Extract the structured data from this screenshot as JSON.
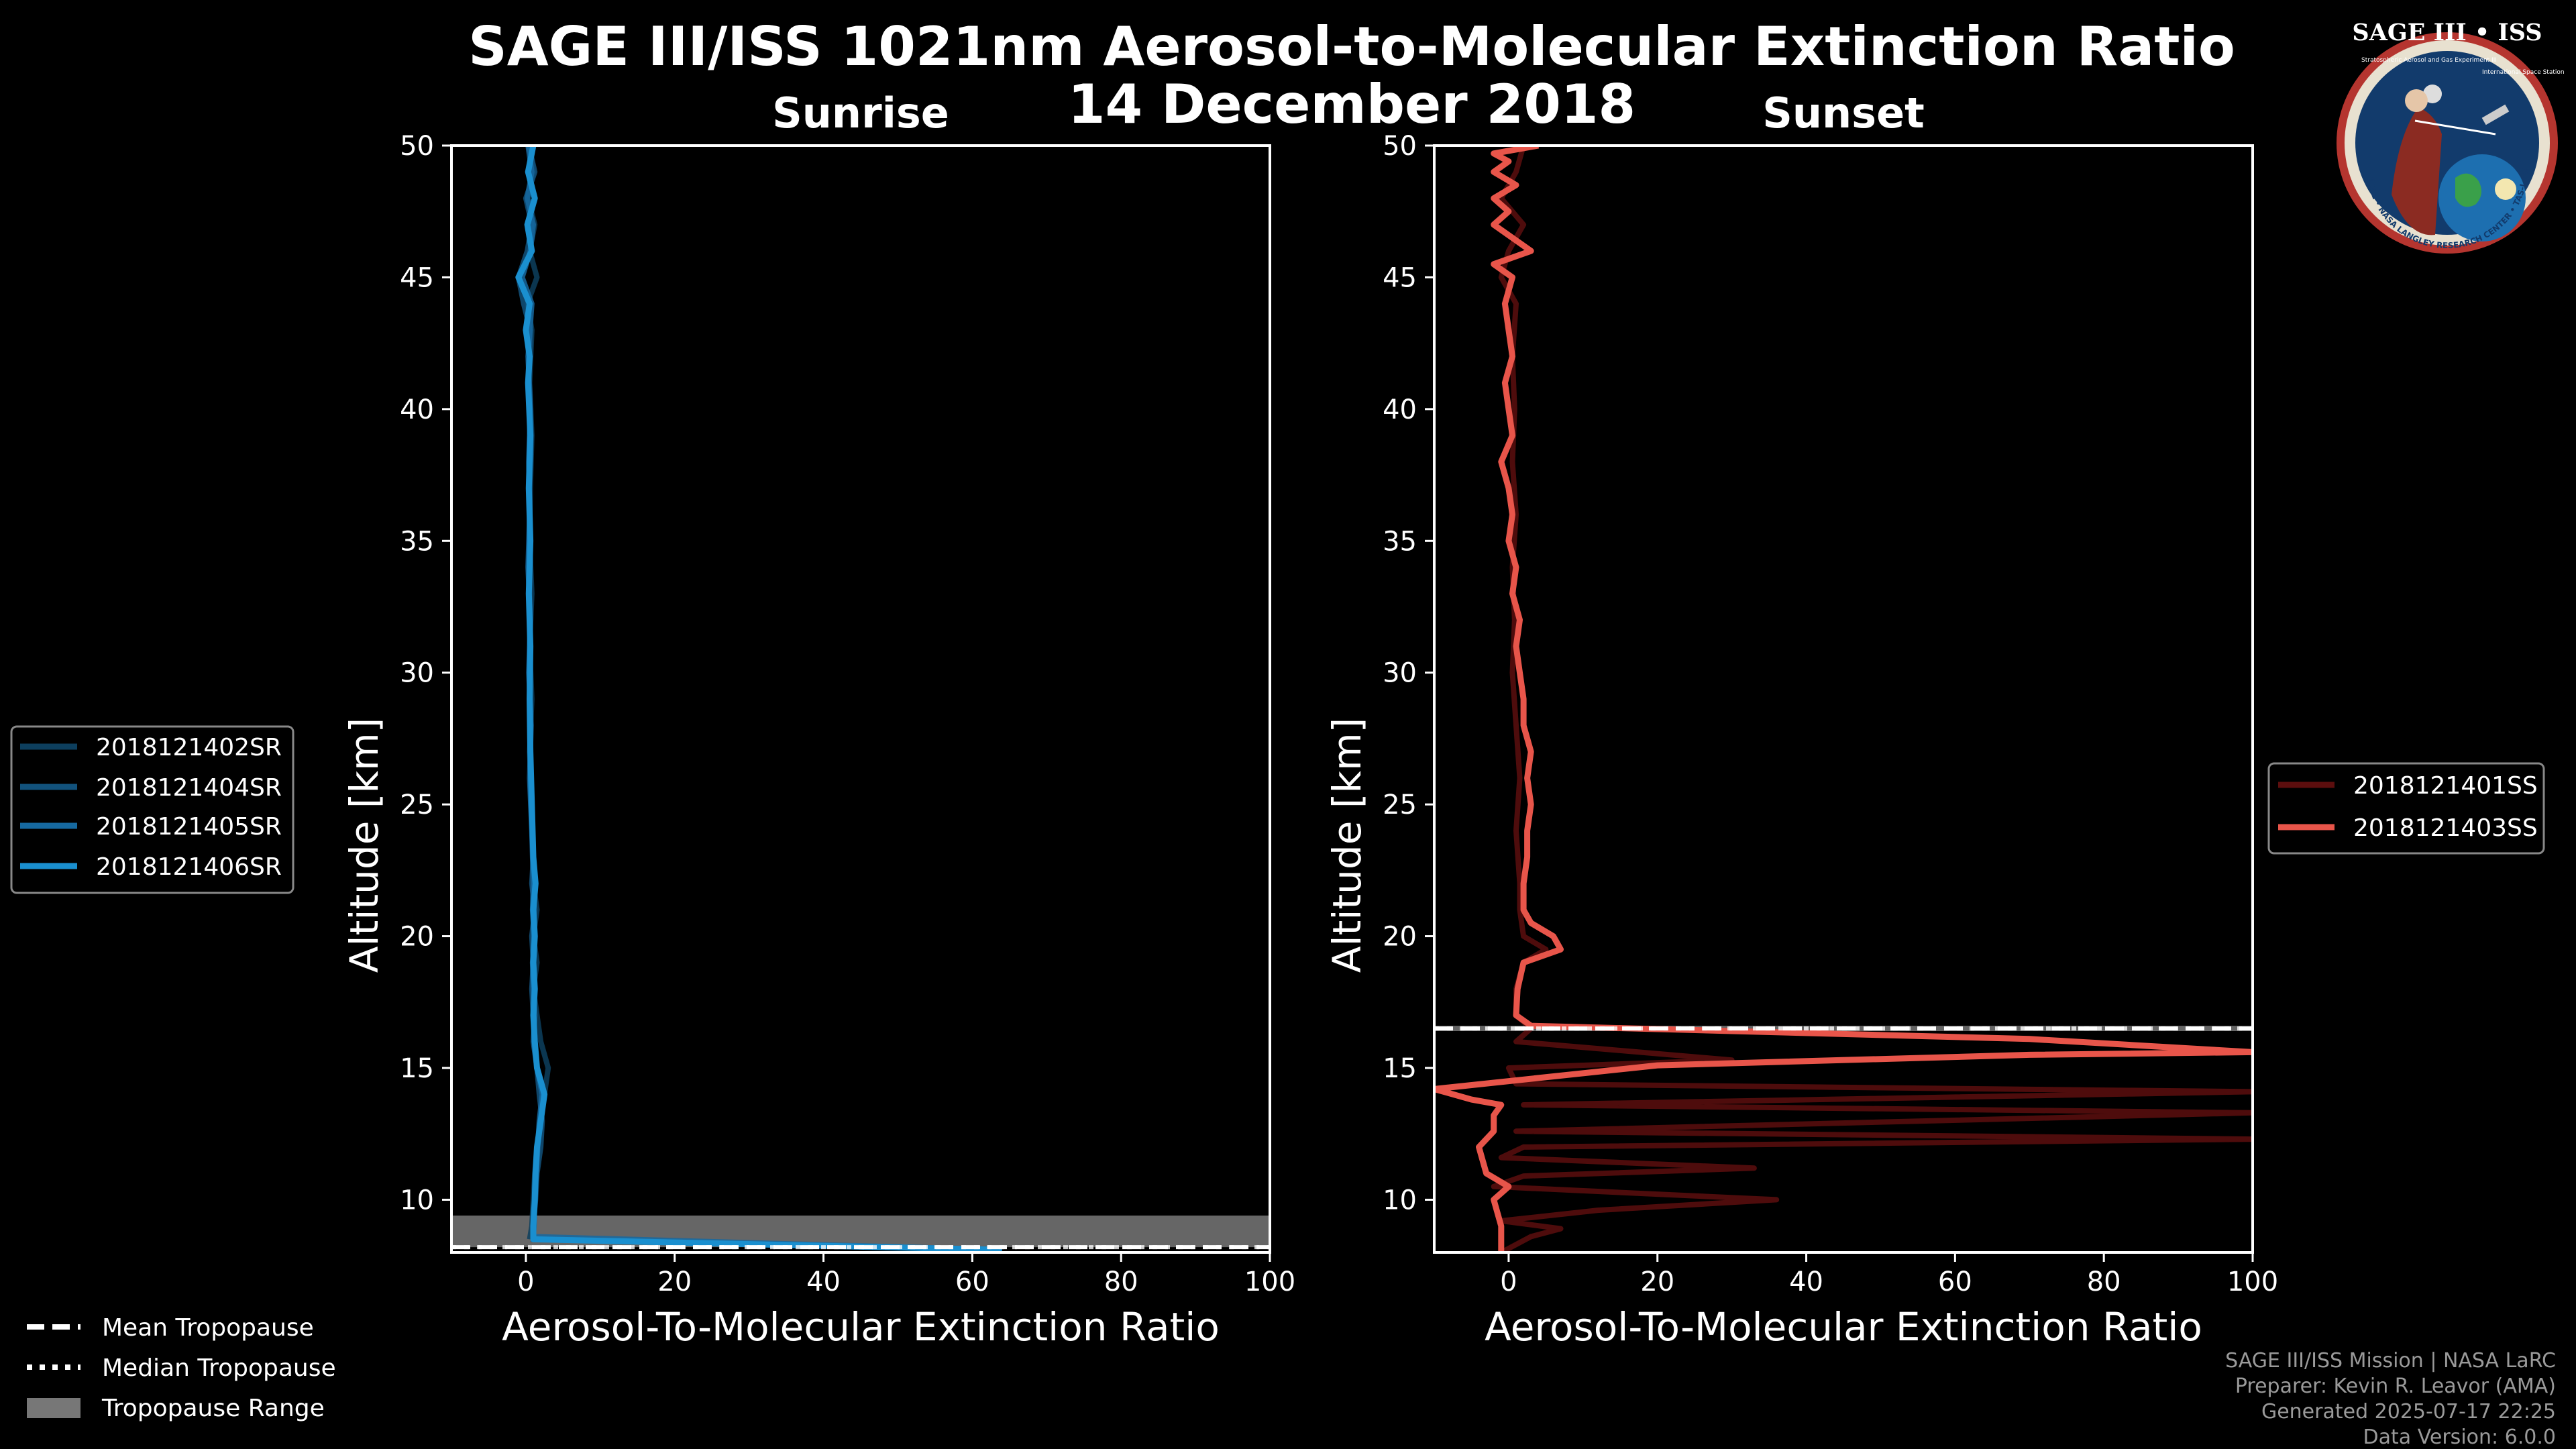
{
  "figure": {
    "title": "SAGE III/ISS 1021nm Aerosol-to-Molecular Extinction Ratio",
    "date": "14 December 2018",
    "footer": [
      "SAGE III/ISS Mission | NASA LaRC",
      "Preparer: Kevin R. Leavor (AMA)",
      "Generated 2025-07-17 22:25",
      "Data Version: 6.0.0"
    ],
    "logo": {
      "title": "SAGE III • ISS",
      "ring_text": "BALL • NASA LANGLEY RESEARCH CENTER • TAS-I • ESA",
      "subtitle": "Stratospheric Aerosol and Gas Experiment III",
      "subtitle2": "International Space Station"
    },
    "tropopause_legend": {
      "mean": "Mean Tropopause",
      "median": "Median Tropopause",
      "range": "Tropopause Range"
    }
  },
  "chart_data": [
    {
      "type": "line",
      "title": "Sunrise",
      "xlabel": "Aerosol-To-Molecular Extinction Ratio",
      "ylabel": "Altitude [km]",
      "xlim": [
        -10,
        100
      ],
      "ylim": [
        8,
        50
      ],
      "xticks": [
        0,
        20,
        40,
        60,
        80,
        100
      ],
      "yticks": [
        10,
        15,
        20,
        25,
        30,
        35,
        40,
        45,
        50
      ],
      "tropopause": {
        "mean": 8.2,
        "median": 8.2,
        "range": [
          8.2,
          9.4
        ]
      },
      "series": [
        {
          "name": "2018121402SR",
          "color": "#0d3f5e",
          "points": [
            [
              0.5,
              8.5
            ],
            [
              0.8,
              9
            ],
            [
              1,
              10
            ],
            [
              1.2,
              11
            ],
            [
              1.5,
              12
            ],
            [
              2,
              13
            ],
            [
              2.5,
              14
            ],
            [
              3,
              15
            ],
            [
              2,
              16
            ],
            [
              1.5,
              17
            ],
            [
              1,
              18
            ],
            [
              1.5,
              19
            ],
            [
              1,
              20
            ],
            [
              1.5,
              21
            ],
            [
              1,
              22
            ],
            [
              1,
              23
            ],
            [
              0.8,
              25
            ],
            [
              0.5,
              27
            ],
            [
              0.8,
              29
            ],
            [
              0.5,
              31
            ],
            [
              0.8,
              33
            ],
            [
              0.5,
              35
            ],
            [
              0.6,
              37
            ],
            [
              0.8,
              39
            ],
            [
              0.5,
              41
            ],
            [
              0.8,
              43
            ],
            [
              0.2,
              44
            ],
            [
              1.5,
              45
            ],
            [
              0.5,
              46
            ],
            [
              1.2,
              47
            ],
            [
              0.3,
              48
            ],
            [
              1,
              49
            ],
            [
              0.5,
              50
            ]
          ]
        },
        {
          "name": "2018121404SR",
          "color": "#12527c",
          "points": [
            [
              1,
              8.4
            ],
            [
              1,
              9
            ],
            [
              1.3,
              10
            ],
            [
              1.5,
              11
            ],
            [
              2,
              12
            ],
            [
              2.2,
              13
            ],
            [
              1.8,
              14
            ],
            [
              1.5,
              15
            ],
            [
              1.2,
              16
            ],
            [
              1,
              17
            ],
            [
              0.8,
              18
            ],
            [
              1,
              19
            ],
            [
              0.8,
              20
            ],
            [
              1.2,
              21
            ],
            [
              0.8,
              22
            ],
            [
              1,
              23
            ],
            [
              0.7,
              25
            ],
            [
              0.6,
              27
            ],
            [
              0.5,
              29
            ],
            [
              0.6,
              31
            ],
            [
              0.5,
              33
            ],
            [
              0.6,
              35
            ],
            [
              0.5,
              37
            ],
            [
              0.7,
              39
            ],
            [
              0.4,
              41
            ],
            [
              0.6,
              43
            ],
            [
              -0.3,
              44
            ],
            [
              -1,
              45
            ],
            [
              0.2,
              46
            ],
            [
              0.8,
              47
            ],
            [
              0,
              48
            ],
            [
              1.2,
              49
            ],
            [
              0.4,
              50
            ]
          ]
        },
        {
          "name": "2018121405SR",
          "color": "#1669a0",
          "points": [
            [
              64,
              8.1
            ],
            [
              1,
              8.6
            ],
            [
              1.1,
              9
            ],
            [
              1.2,
              10
            ],
            [
              1.4,
              11
            ],
            [
              1.6,
              12
            ],
            [
              1.8,
              13
            ],
            [
              2.2,
              14
            ],
            [
              1.5,
              15
            ],
            [
              1,
              16
            ],
            [
              1.2,
              17
            ],
            [
              1,
              18
            ],
            [
              0.9,
              19
            ],
            [
              1.1,
              20
            ],
            [
              0.9,
              21
            ],
            [
              1,
              22
            ],
            [
              0.8,
              24
            ],
            [
              0.5,
              26
            ],
            [
              0.7,
              28
            ],
            [
              0.4,
              30
            ],
            [
              0.6,
              32
            ],
            [
              0.3,
              34
            ],
            [
              0.5,
              36
            ],
            [
              0.4,
              38
            ],
            [
              0.6,
              40
            ],
            [
              0.3,
              42
            ],
            [
              0.8,
              44
            ],
            [
              -0.5,
              45
            ],
            [
              0.6,
              46
            ],
            [
              1,
              47
            ],
            [
              0.2,
              48
            ],
            [
              0.8,
              49
            ],
            [
              0.3,
              50
            ]
          ]
        },
        {
          "name": "2018121406SR",
          "color": "#1a8fcf",
          "points": [
            [
              64,
              8.1
            ],
            [
              1,
              8.5
            ],
            [
              1,
              9
            ],
            [
              1.2,
              10
            ],
            [
              1.3,
              11
            ],
            [
              1.5,
              12
            ],
            [
              2,
              13
            ],
            [
              2.5,
              14
            ],
            [
              1.5,
              15
            ],
            [
              1.2,
              16
            ],
            [
              1,
              17
            ],
            [
              1.2,
              18
            ],
            [
              1,
              19
            ],
            [
              1.2,
              20
            ],
            [
              1,
              21
            ],
            [
              1.3,
              22
            ],
            [
              1,
              23
            ],
            [
              0.8,
              25
            ],
            [
              0.6,
              27
            ],
            [
              0.5,
              29
            ],
            [
              0.6,
              31
            ],
            [
              0.4,
              33
            ],
            [
              0.6,
              35
            ],
            [
              0.4,
              37
            ],
            [
              0.6,
              39
            ],
            [
              0.3,
              41
            ],
            [
              0.5,
              42
            ],
            [
              0,
              43
            ],
            [
              0.5,
              44
            ],
            [
              -1,
              45
            ],
            [
              0.8,
              46
            ],
            [
              0.2,
              47
            ],
            [
              1.2,
              48
            ],
            [
              0.3,
              49
            ],
            [
              1,
              50
            ]
          ]
        }
      ]
    },
    {
      "type": "line",
      "title": "Sunset",
      "xlabel": "Aerosol-To-Molecular Extinction Ratio",
      "ylabel": "Altitude [km]",
      "xlim": [
        -10,
        100
      ],
      "ylim": [
        8,
        50
      ],
      "xticks": [
        0,
        20,
        40,
        60,
        80,
        100
      ],
      "yticks": [
        10,
        15,
        20,
        25,
        30,
        35,
        40,
        45,
        50
      ],
      "tropopause": {
        "mean": 16.5,
        "median": 16.5,
        "range": [
          16.4,
          16.6
        ]
      },
      "series": [
        {
          "name": "2018121401SS",
          "color": "#5c0e0e",
          "points": [
            [
              -1,
              8
            ],
            [
              3,
              8.6
            ],
            [
              7,
              8.9
            ],
            [
              -1,
              9.2
            ],
            [
              12,
              9.6
            ],
            [
              36,
              10
            ],
            [
              -2,
              10.5
            ],
            [
              2,
              10.9
            ],
            [
              33,
              11.2
            ],
            [
              -1,
              11.6
            ],
            [
              2,
              12
            ],
            [
              100,
              12.3
            ],
            [
              1,
              12.6
            ],
            [
              100,
              13.3
            ],
            [
              2,
              13.6
            ],
            [
              100,
              14.1
            ],
            [
              1,
              14.4
            ],
            [
              0,
              15
            ],
            [
              30,
              15.3
            ],
            [
              1,
              16
            ],
            [
              3,
              16.5
            ],
            [
              1,
              17
            ],
            [
              1,
              18
            ],
            [
              2,
              19
            ],
            [
              5,
              19.5
            ],
            [
              2,
              20
            ],
            [
              1.5,
              21
            ],
            [
              1.5,
              22
            ],
            [
              1,
              24
            ],
            [
              1.5,
              26
            ],
            [
              1,
              28
            ],
            [
              0.5,
              30
            ],
            [
              0.8,
              32
            ],
            [
              0.5,
              34
            ],
            [
              1,
              36
            ],
            [
              0.5,
              38
            ],
            [
              0.8,
              40
            ],
            [
              0.5,
              42
            ],
            [
              1,
              44
            ],
            [
              -1,
              45
            ],
            [
              0,
              46
            ],
            [
              2,
              47
            ],
            [
              -1,
              48
            ],
            [
              1,
              49
            ],
            [
              2,
              50
            ]
          ]
        },
        {
          "name": "2018121403SS",
          "color": "#e8554a",
          "points": [
            [
              -1,
              8
            ],
            [
              -1,
              9
            ],
            [
              -2,
              10
            ],
            [
              0,
              10.5
            ],
            [
              -3,
              11
            ],
            [
              -4,
              12
            ],
            [
              -2,
              12.6
            ],
            [
              -2,
              13.2
            ],
            [
              -1,
              13.6
            ],
            [
              -5,
              13.8
            ],
            [
              -10,
              14.2
            ],
            [
              20,
              15.1
            ],
            [
              70,
              15.5
            ],
            [
              100,
              15.6
            ],
            [
              70,
              16.1
            ],
            [
              30,
              16.4
            ],
            [
              3,
              16.6
            ],
            [
              1,
              17
            ],
            [
              1.2,
              18
            ],
            [
              2,
              19
            ],
            [
              7,
              19.5
            ],
            [
              6,
              20
            ],
            [
              3,
              20.5
            ],
            [
              2,
              21
            ],
            [
              2,
              22
            ],
            [
              2.5,
              23
            ],
            [
              2.5,
              24
            ],
            [
              3,
              25
            ],
            [
              2.5,
              26
            ],
            [
              3,
              27
            ],
            [
              2,
              28
            ],
            [
              2,
              29
            ],
            [
              1.5,
              30
            ],
            [
              1,
              31
            ],
            [
              1.5,
              32
            ],
            [
              0.5,
              33
            ],
            [
              1,
              34
            ],
            [
              0,
              35
            ],
            [
              0.5,
              36
            ],
            [
              0,
              37
            ],
            [
              -1,
              38
            ],
            [
              0.5,
              39
            ],
            [
              0,
              40
            ],
            [
              -0.5,
              41
            ],
            [
              0.5,
              42
            ],
            [
              0,
              43
            ],
            [
              -0.5,
              44
            ],
            [
              0.5,
              45
            ],
            [
              -2,
              45.5
            ],
            [
              3,
              46
            ],
            [
              -2,
              47
            ],
            [
              0,
              47.5
            ],
            [
              -2,
              48
            ],
            [
              1,
              48.5
            ],
            [
              -2,
              49
            ],
            [
              0,
              49.4
            ],
            [
              -2,
              49.7
            ],
            [
              4,
              50
            ]
          ]
        }
      ]
    }
  ]
}
